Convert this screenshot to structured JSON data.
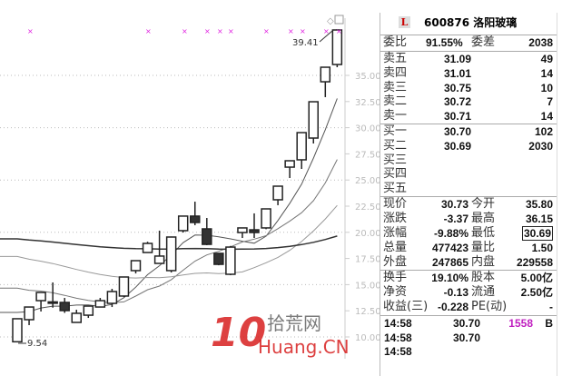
{
  "chart": {
    "y_axis_ticks": [
      "35.00",
      "32.50",
      "30.00",
      "27.50",
      "25.00",
      "22.50",
      "20.00",
      "17.50",
      "15.00",
      "12.50",
      "10.00"
    ],
    "high_label": "39.41",
    "low_label": "9.54",
    "candles": [
      {
        "o": 9.54,
        "h": 11.74,
        "l": 9.54,
        "c": 11.74
      },
      {
        "o": 11.65,
        "h": 12.86,
        "l": 11.13,
        "c": 12.86
      },
      {
        "o": 13.47,
        "h": 14.25,
        "l": 12.43,
        "c": 14.25
      },
      {
        "o": 13.3,
        "h": 15.21,
        "l": 12.8,
        "c": 13.35
      },
      {
        "o": 13.3,
        "h": 13.73,
        "l": 12.3,
        "c": 12.52
      },
      {
        "o": 11.39,
        "h": 12.6,
        "l": 11.39,
        "c": 12.26
      },
      {
        "o": 12.08,
        "h": 12.95,
        "l": 11.82,
        "c": 12.95
      },
      {
        "o": 12.86,
        "h": 13.73,
        "l": 12.86,
        "c": 13.47
      },
      {
        "o": 13.21,
        "h": 14.6,
        "l": 12.86,
        "c": 14.34
      },
      {
        "o": 13.91,
        "h": 15.73,
        "l": 13.82,
        "c": 15.73
      },
      {
        "o": 16.34,
        "h": 17.29,
        "l": 16.07,
        "c": 17.29
      },
      {
        "o": 18.07,
        "h": 19.1,
        "l": 18.07,
        "c": 18.94
      },
      {
        "o": 17.03,
        "h": 20.16,
        "l": 17.03,
        "c": 17.73
      },
      {
        "o": 16.34,
        "h": 19.6,
        "l": 16.16,
        "c": 19.55
      },
      {
        "o": 20.16,
        "h": 21.55,
        "l": 19.98,
        "c": 21.55
      },
      {
        "o": 21.55,
        "h": 22.93,
        "l": 20.68,
        "c": 20.94
      },
      {
        "o": 20.33,
        "h": 21.37,
        "l": 18.77,
        "c": 18.85
      },
      {
        "o": 17.99,
        "h": 17.99,
        "l": 16.85,
        "c": 16.94
      },
      {
        "o": 15.99,
        "h": 18.7,
        "l": 15.9,
        "c": 18.59
      },
      {
        "o": 19.98,
        "h": 20.42,
        "l": 19.46,
        "c": 20.42
      },
      {
        "o": 20.24,
        "h": 21.81,
        "l": 19.46,
        "c": 19.98
      },
      {
        "o": 20.42,
        "h": 22.24,
        "l": 20.3,
        "c": 22.24
      },
      {
        "o": 23.11,
        "h": 24.41,
        "l": 22.59,
        "c": 24.41
      },
      {
        "o": 26.23,
        "h": 26.84,
        "l": 25.19,
        "c": 26.84
      },
      {
        "o": 26.93,
        "h": 29.53,
        "l": 26.06,
        "c": 29.53
      },
      {
        "o": 29.01,
        "h": 32.48,
        "l": 28.49,
        "c": 32.48
      },
      {
        "o": 34.39,
        "h": 35.78,
        "l": 32.92,
        "c": 35.78
      },
      {
        "o": 36.04,
        "h": 39.41,
        "l": 35.78,
        "c": 39.34
      }
    ],
    "colors": {
      "candle": "#222222",
      "marker": "#e020e0",
      "grid": "#bbbbbb",
      "axis_text": "#bbbbbb"
    }
  },
  "quote": {
    "logo": "L",
    "code_name": "600876 洛阳玻璃",
    "weibi_label": "委比",
    "weibi": "91.55%",
    "weicha_label": "委差",
    "weicha": "2038",
    "asks": [
      {
        "label": "卖五",
        "price": "31.09",
        "vol": "49"
      },
      {
        "label": "卖四",
        "price": "31.01",
        "vol": "14"
      },
      {
        "label": "卖三",
        "price": "30.75",
        "vol": "10"
      },
      {
        "label": "卖二",
        "price": "30.72",
        "vol": "7"
      },
      {
        "label": "卖一",
        "price": "30.71",
        "vol": "14"
      }
    ],
    "bids": [
      {
        "label": "买一",
        "price": "30.70",
        "vol": "102"
      },
      {
        "label": "买二",
        "price": "30.69",
        "vol": "2030"
      },
      {
        "label": "买三",
        "price": "",
        "vol": ""
      },
      {
        "label": "买四",
        "price": "",
        "vol": ""
      },
      {
        "label": "买五",
        "price": "",
        "vol": ""
      }
    ],
    "stats": [
      {
        "l1": "现价",
        "v1": "30.73",
        "l2": "今开",
        "v2": "35.80"
      },
      {
        "l1": "涨跌",
        "v1": "-3.37",
        "l2": "最高",
        "v2": "36.15"
      },
      {
        "l1": "涨幅",
        "v1": "-9.88%",
        "l2": "最低",
        "v2": "30.69"
      },
      {
        "l1": "总量",
        "v1": "477423",
        "l2": "量比",
        "v2": "1.50"
      },
      {
        "l1": "外盘",
        "v1": "247865",
        "l2": "内盘",
        "v2": "229558"
      }
    ],
    "fund": [
      {
        "l1": "换手",
        "v1": "19.10%",
        "l2": "股本",
        "v2": "5.00亿"
      },
      {
        "l1": "净资",
        "v1": "-0.13",
        "l2": "流通",
        "v2": "2.50亿"
      },
      {
        "l1": "收益(三)",
        "v1": "-0.228",
        "l2": "PE(动)",
        "v2": "-"
      }
    ],
    "ticks": [
      {
        "time": "14:58",
        "price": "30.70",
        "vol": "1558",
        "side": "B"
      },
      {
        "time": "14:58",
        "price": "30.70",
        "vol": "",
        "side": ""
      },
      {
        "time": "14:58",
        "price": "",
        "vol": "",
        "side": ""
      }
    ],
    "tick_vol_color": "#c020c0"
  },
  "watermark": {
    "number": "10",
    "cn": "拾荒网",
    "en": "Huang.CN"
  }
}
